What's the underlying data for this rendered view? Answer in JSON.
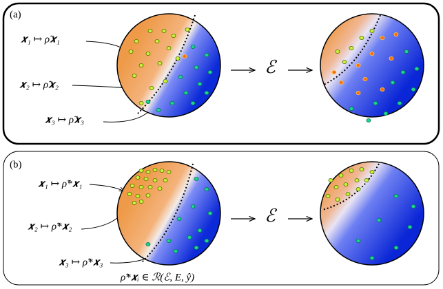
{
  "panels": [
    {
      "label": "(a)",
      "mappings": [
        "𝒙₁ ↦ ρ̃𝒙₁",
        "𝒙₂ ↦ ρ̃𝒙₂",
        "𝒙₃ ↦ ρ̃𝒙₃"
      ],
      "channel": "ℰ"
    },
    {
      "label": "(b)",
      "mappings": [
        "𝒙₁ ↦ ρ̃*𝒙₁",
        "𝒙₂ ↦ ρ̃*𝒙₂",
        "𝒙₃ ↦ ρ̃*𝒙₃"
      ],
      "channel": "ℰ",
      "caption": "ρ̃*𝒙ᵢ ∈ ℛ(ℰ, E, ŷ)"
    }
  ]
}
